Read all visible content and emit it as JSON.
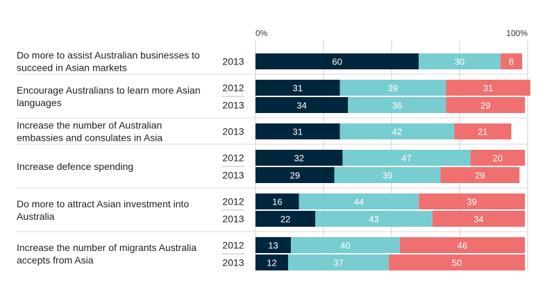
{
  "chart_data": {
    "type": "bar",
    "orientation": "horizontal",
    "stacked": true,
    "xlim": [
      0,
      100
    ],
    "x_tick_labels": [
      "0%",
      "100%"
    ],
    "grid": true,
    "legend": null,
    "series_colors": [
      "#00263e",
      "#78cdd1",
      "#f07070"
    ],
    "groups": [
      {
        "label_lines": [
          "Do more to assist Australian businesses to",
          "succeed in Asian markets"
        ],
        "rows": [
          {
            "year": "2013",
            "values": [
              60,
              30,
              8
            ]
          }
        ]
      },
      {
        "label_lines": [
          "Encourage Australians to learn more Asian",
          "languages"
        ],
        "rows": [
          {
            "year": "2012",
            "values": [
              31,
              39,
              31
            ]
          },
          {
            "year": "2013",
            "values": [
              34,
              36,
              29
            ]
          }
        ]
      },
      {
        "label_lines": [
          "Increase the number of Australian",
          "embassies and consulates in Asia"
        ],
        "rows": [
          {
            "year": "2013",
            "values": [
              31,
              42,
              21
            ]
          }
        ]
      },
      {
        "label_lines": [
          "Increase defence spending"
        ],
        "rows": [
          {
            "year": "2012",
            "values": [
              32,
              47,
              20
            ]
          },
          {
            "year": "2013",
            "values": [
              29,
              39,
              29
            ]
          }
        ]
      },
      {
        "label_lines": [
          "Do more to attract Asian investment into",
          "Australia"
        ],
        "rows": [
          {
            "year": "2012",
            "values": [
              16,
              44,
              39
            ]
          },
          {
            "year": "2013",
            "values": [
              22,
              43,
              34
            ]
          }
        ]
      },
      {
        "label_lines": [
          "Increase the number of migrants Australia",
          "accepts from Asia"
        ],
        "rows": [
          {
            "year": "2012",
            "values": [
              13,
              40,
              46
            ]
          },
          {
            "year": "2013",
            "values": [
              12,
              37,
              50
            ]
          }
        ]
      }
    ]
  }
}
